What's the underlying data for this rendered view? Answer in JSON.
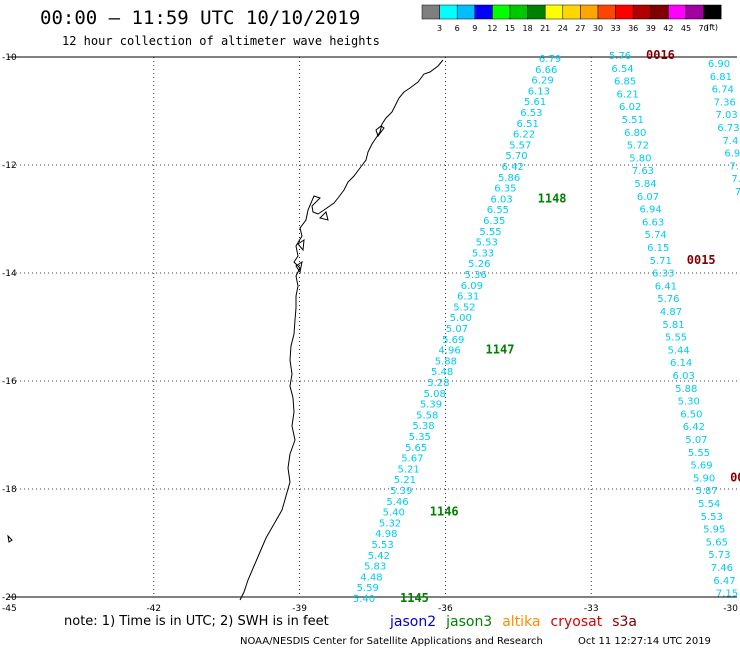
{
  "header": {
    "title": "00:00 – 11:59 UTC 10/10/2019",
    "subtitle": "12 hour collection of altimeter wave heights"
  },
  "color_scale": {
    "labels": [
      "3",
      "6",
      "9",
      "12",
      "15",
      "18",
      "21",
      "24",
      "27",
      "30",
      "33",
      "36",
      "39",
      "42",
      "45",
      "70"
    ],
    "unit": "(ft)",
    "colors": [
      "#7f7f7f",
      "#00ffff",
      "#00bfff",
      "#0000ff",
      "#00ff00",
      "#00c800",
      "#008000",
      "#ffff00",
      "#ffd700",
      "#ffa500",
      "#ff4500",
      "#ff0000",
      "#b00000",
      "#800000",
      "#ff00ff",
      "#a000a0",
      "#000000"
    ]
  },
  "axes": {
    "lon_ticks": [
      "-45",
      "-42",
      "-39",
      "-36",
      "-33",
      "-30"
    ],
    "lat_ticks": [
      "-10",
      "-12",
      "-14",
      "-16",
      "-18",
      "-20"
    ]
  },
  "track_a": {
    "values": [
      "6.79",
      "6.66",
      "6.29",
      "6.13",
      "5.61",
      "6.53",
      "6.51",
      "6.22",
      "5.57",
      "5.70",
      "6.42",
      "5.86",
      "6.35",
      "6.03",
      "6.55",
      "6.35",
      "5.55",
      "5.53",
      "5.33",
      "5.26",
      "5.36",
      "6.09",
      "6.31",
      "5.52",
      "5.00",
      "5.07",
      "5.69",
      "4.96",
      "5.88",
      "5.48",
      "5.28",
      "5.08",
      "5.39",
      "5.58",
      "5.38",
      "5.35",
      "5.65",
      "5.67",
      "5.21",
      "5.21",
      "5.39",
      "5.46",
      "5.40",
      "5.32",
      "4.98",
      "5.53",
      "5.42",
      "5.83",
      "4.48",
      "5.59",
      "5.40"
    ],
    "times": [
      {
        "label": "1148",
        "row": 13
      },
      {
        "label": "1147",
        "row": 27
      },
      {
        "label": "1146",
        "row": 42
      },
      {
        "label": "1145",
        "row": 50
      }
    ]
  },
  "track_b": {
    "values": [
      "5.76",
      "6.54",
      "6.85",
      "6.21",
      "6.02",
      "5.51",
      "6.80",
      "5.72",
      "5.80",
      "7.63",
      "5.84",
      "6.07",
      "6.94",
      "6.63",
      "5.74",
      "6.15",
      "5.71",
      "6.33",
      "6.41",
      "5.76",
      "4.87",
      "5.81",
      "5.55",
      "5.44",
      "6.14",
      "6.03",
      "5.88",
      "5.30",
      "6.50",
      "6.42",
      "5.07",
      "5.55",
      "5.69",
      "5.90",
      "5.87",
      "5.54",
      "5.53",
      "5.95",
      "5.65",
      "5.73",
      "7.46",
      "6.47",
      "7.15"
    ],
    "times": [
      {
        "label": "0016",
        "row": 0
      },
      {
        "label": "0015",
        "row": 16
      },
      {
        "label": "00",
        "row": 33
      }
    ]
  },
  "track_c": {
    "values": [
      "6.90",
      "6.81",
      "6.74",
      "7.36",
      "7.03",
      "6.73",
      "7.4",
      "6.9",
      "7.",
      "7.",
      "7"
    ]
  },
  "legend": {
    "note": "note: 1) Time is in UTC; 2) SWH is in feet",
    "satellites": [
      {
        "name": "jason2",
        "color": "#0000cc"
      },
      {
        "name": "jason3",
        "color": "#008000"
      },
      {
        "name": "altika",
        "color": "#ff8c00"
      },
      {
        "name": "cryosat",
        "color": "#dd0000"
      },
      {
        "name": "s3a",
        "color": "#800000"
      }
    ]
  },
  "footer": {
    "credit": "NOAA/NESDIS Center for Satellite Applications and Research",
    "timestamp": "Oct 11 12:27:14 UTC 2019"
  },
  "colors": {
    "track_values": "#00cdee",
    "jason3_time": "#008000",
    "s3a_time": "#800000"
  }
}
